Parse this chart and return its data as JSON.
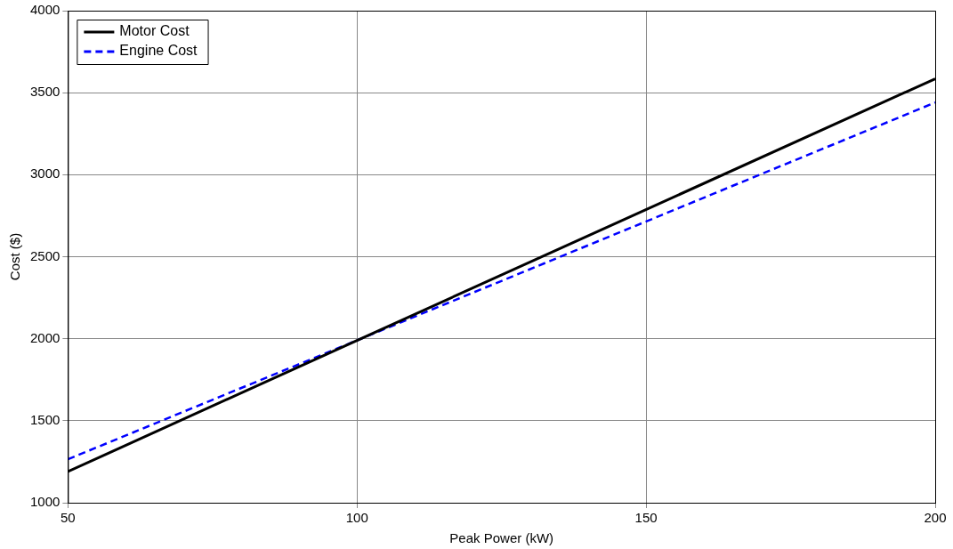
{
  "chart_data": {
    "type": "line",
    "xlabel": "Peak Power (kW)",
    "ylabel": "Cost ($)",
    "xlim": [
      50,
      200
    ],
    "xticks": [
      50,
      100,
      150,
      200
    ],
    "ylim": [
      1000,
      4000
    ],
    "yticks": [
      1000,
      1500,
      2000,
      2500,
      3000,
      3500,
      4000
    ],
    "grid": true,
    "legend": "top left",
    "marker": "none",
    "series": [
      {
        "name": "Motor Cost",
        "color": "#000000",
        "x": [
          50,
          100,
          200
        ],
        "values": [
          1190,
          1990,
          3585
        ],
        "line_style": "solid"
      },
      {
        "name": "Engine Cost",
        "color": "#0000ff",
        "x": [
          50,
          100,
          200
        ],
        "values": [
          1265,
          1990,
          3440
        ],
        "line_style": "dashed"
      }
    ]
  }
}
